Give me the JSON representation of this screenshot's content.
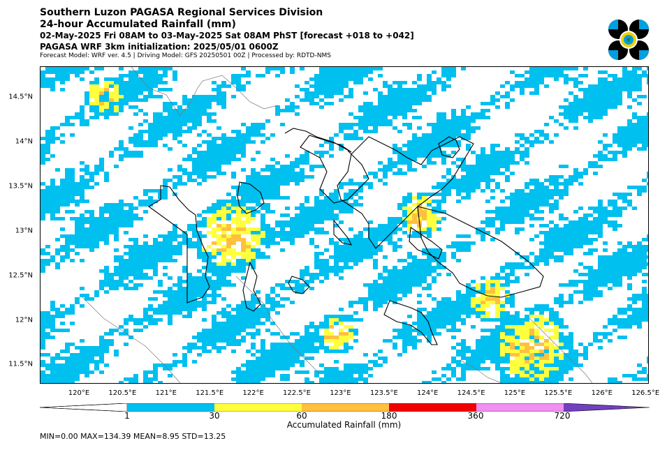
{
  "header": {
    "line1": "Southern Luzon PAGASA Regional Services Division",
    "line2": "24-hour Accumulated Rainfall (mm)",
    "line3": "02-May-2025 Fri 08AM to 03-May-2025 Sat 08AM PhST [forecast +018 to +042]",
    "line4": "PAGASA WRF 3km initialization: 2025/05/01 0600Z",
    "line5": "Forecast Model: WRF ver. 4.5 | Driving Model: GFS 20250501 00Z | Processed by: RDTD-NMS"
  },
  "logo": {
    "icon": "pagasa-logo-icon",
    "text": "PAGASA"
  },
  "map": {
    "lat_labels": [
      "14.5°N",
      "14°N",
      "13.5°N",
      "13°N",
      "12.5°N",
      "12°N",
      "11.5°N"
    ],
    "lon_labels": [
      "120°E",
      "120.5°E",
      "121°E",
      "121.5°E",
      "122°E",
      "122.5°E",
      "123°E",
      "123.5°E",
      "124°E",
      "124.5°E",
      "125°E",
      "125.5°E",
      "126°E",
      "126.5°E"
    ],
    "lat_range": [
      11.3,
      14.85
    ],
    "lon_range": [
      119.55,
      126.55
    ]
  },
  "colorbar": {
    "title": "Accumulated Rainfall (mm)",
    "labels": [
      "1",
      "30",
      "60",
      "180",
      "360",
      "720"
    ],
    "colors": [
      "#ffffff",
      "#00c0f0",
      "#ffff40",
      "#ffc040",
      "#f00000",
      "#f090f0",
      "#7040c0"
    ]
  },
  "stats": "MIN=0.00   MAX=134.39   MEAN=8.95   STD=13.25"
}
